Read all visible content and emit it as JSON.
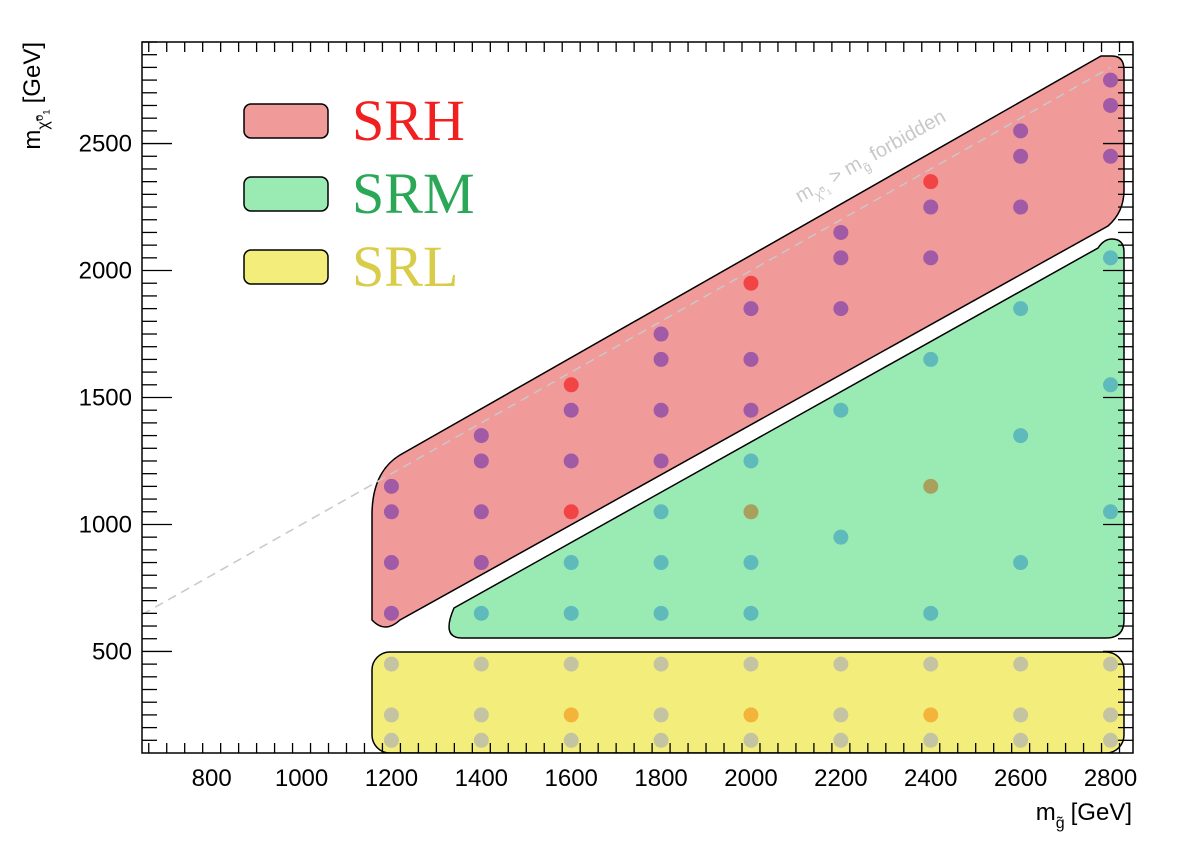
{
  "chart_data": {
    "type": "scatter",
    "xlabel": "m",
    "xlabel_sub": "g̃",
    "xlabel_unit": "[GeV]",
    "ylabel": "m",
    "ylabel_sub": "χ̃⁰₁",
    "ylabel_unit": "[GeV]",
    "xlim": [
      645,
      2850
    ],
    "ylim": [
      100,
      2900
    ],
    "x_ticks": [
      800,
      1000,
      1200,
      1400,
      1600,
      1800,
      2000,
      2200,
      2400,
      2600,
      2800
    ],
    "y_ticks": [
      500,
      1000,
      1500,
      2000,
      2500
    ],
    "grid": false,
    "legend_placement": "top-left",
    "annotation": {
      "text_m": "m",
      "text_sub1": "χ̃⁰₁",
      "text_mid": " > m",
      "text_sub2": "g̃",
      "text_end": " forbidden",
      "line": "diagonal m_chi = m_gluino"
    },
    "regions": [
      {
        "name": "SRH",
        "fill": "#f19a9a",
        "text_color": "#f02020"
      },
      {
        "name": "SRM",
        "fill": "#9aeab4",
        "text_color": "#2aa858"
      },
      {
        "name": "SRL",
        "fill": "#f3ee7c",
        "text_color": "#d8cc48"
      }
    ],
    "colors": {
      "purple": "#a05aa6",
      "red": "#f24444",
      "teal": "#5fbbbb",
      "olive": "#a8a05c",
      "gray": "#c4c4a2",
      "orange": "#f4b43c"
    },
    "points": [
      [
        1200,
        1150,
        "purple"
      ],
      [
        1200,
        1050,
        "purple"
      ],
      [
        1200,
        850,
        "purple"
      ],
      [
        1200,
        650,
        "purple"
      ],
      [
        1400,
        1350,
        "purple"
      ],
      [
        1400,
        1250,
        "purple"
      ],
      [
        1400,
        1050,
        "purple"
      ],
      [
        1400,
        850,
        "purple"
      ],
      [
        1600,
        1550,
        "red"
      ],
      [
        1600,
        1450,
        "purple"
      ],
      [
        1600,
        1250,
        "purple"
      ],
      [
        1600,
        1050,
        "red"
      ],
      [
        1800,
        1750,
        "purple"
      ],
      [
        1800,
        1650,
        "purple"
      ],
      [
        1800,
        1450,
        "purple"
      ],
      [
        1800,
        1250,
        "purple"
      ],
      [
        2000,
        1950,
        "red"
      ],
      [
        2000,
        1850,
        "purple"
      ],
      [
        2000,
        1650,
        "purple"
      ],
      [
        2000,
        1450,
        "purple"
      ],
      [
        2200,
        2150,
        "purple"
      ],
      [
        2200,
        2050,
        "purple"
      ],
      [
        2200,
        1850,
        "purple"
      ],
      [
        2400,
        2350,
        "red"
      ],
      [
        2400,
        2250,
        "purple"
      ],
      [
        2400,
        2050,
        "purple"
      ],
      [
        2600,
        2550,
        "purple"
      ],
      [
        2600,
        2450,
        "purple"
      ],
      [
        2600,
        2250,
        "purple"
      ],
      [
        2800,
        2750,
        "purple"
      ],
      [
        2800,
        2650,
        "purple"
      ],
      [
        2800,
        2450,
        "purple"
      ],
      [
        1400,
        650,
        "teal"
      ],
      [
        1600,
        850,
        "teal"
      ],
      [
        1600,
        650,
        "teal"
      ],
      [
        1800,
        1050,
        "teal"
      ],
      [
        1800,
        850,
        "teal"
      ],
      [
        1800,
        650,
        "teal"
      ],
      [
        2000,
        1250,
        "teal"
      ],
      [
        2000,
        1050,
        "olive"
      ],
      [
        2000,
        850,
        "teal"
      ],
      [
        2000,
        650,
        "teal"
      ],
      [
        2200,
        1450,
        "teal"
      ],
      [
        2200,
        950,
        "teal"
      ],
      [
        2400,
        1650,
        "teal"
      ],
      [
        2400,
        1150,
        "olive"
      ],
      [
        2400,
        650,
        "teal"
      ],
      [
        2600,
        1850,
        "teal"
      ],
      [
        2600,
        1350,
        "teal"
      ],
      [
        2600,
        850,
        "teal"
      ],
      [
        2800,
        2050,
        "teal"
      ],
      [
        2800,
        1550,
        "teal"
      ],
      [
        2800,
        1050,
        "teal"
      ],
      [
        1200,
        450,
        "gray"
      ],
      [
        1200,
        250,
        "gray"
      ],
      [
        1200,
        150,
        "gray"
      ],
      [
        1400,
        450,
        "gray"
      ],
      [
        1400,
        250,
        "gray"
      ],
      [
        1400,
        150,
        "gray"
      ],
      [
        1600,
        450,
        "gray"
      ],
      [
        1600,
        250,
        "orange"
      ],
      [
        1600,
        150,
        "gray"
      ],
      [
        1800,
        450,
        "gray"
      ],
      [
        1800,
        250,
        "gray"
      ],
      [
        1800,
        150,
        "gray"
      ],
      [
        2000,
        450,
        "gray"
      ],
      [
        2000,
        250,
        "orange"
      ],
      [
        2000,
        150,
        "gray"
      ],
      [
        2200,
        450,
        "gray"
      ],
      [
        2200,
        250,
        "gray"
      ],
      [
        2200,
        150,
        "gray"
      ],
      [
        2400,
        450,
        "gray"
      ],
      [
        2400,
        250,
        "orange"
      ],
      [
        2400,
        150,
        "gray"
      ],
      [
        2600,
        450,
        "gray"
      ],
      [
        2600,
        250,
        "gray"
      ],
      [
        2600,
        150,
        "gray"
      ],
      [
        2800,
        450,
        "gray"
      ],
      [
        2800,
        250,
        "gray"
      ],
      [
        2800,
        150,
        "gray"
      ]
    ]
  }
}
